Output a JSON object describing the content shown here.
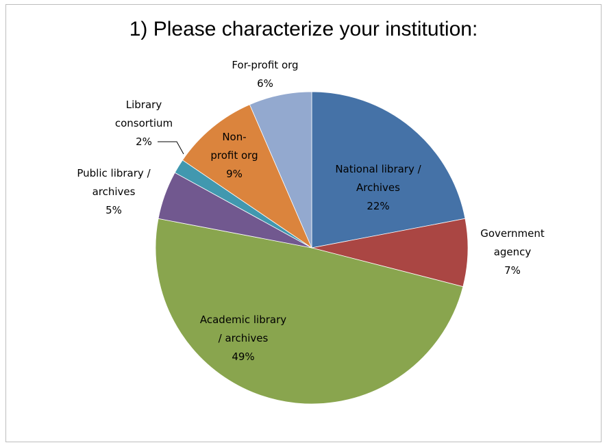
{
  "chart_data": {
    "type": "pie",
    "title": "1) Please characterize your institution:",
    "slices": [
      {
        "label": "National library / Archives",
        "label_lines": [
          "National library /",
          "Archives"
        ],
        "pct_label": "22%",
        "value": 22,
        "color": "#4572A7",
        "label_pos": "inside"
      },
      {
        "label": "Government agency",
        "label_lines": [
          "Government",
          "agency"
        ],
        "pct_label": "7%",
        "value": 7,
        "color": "#AA4643",
        "label_pos": "outside-right"
      },
      {
        "label": "Academic library / archives",
        "label_lines": [
          "Academic library",
          "/ archives"
        ],
        "pct_label": "49%",
        "value": 49,
        "color": "#89A54E",
        "label_pos": "inside"
      },
      {
        "label": "Public library / archives",
        "label_lines": [
          "Public library /",
          "archives"
        ],
        "pct_label": "5%",
        "value": 5,
        "color": "#71588F",
        "label_pos": "outside-left"
      },
      {
        "label": "Library consortium",
        "label_lines": [
          "Library",
          "consortium"
        ],
        "pct_label": "2%",
        "value": 1.5,
        "color": "#4198AF",
        "label_pos": "outside-left-leader"
      },
      {
        "label": "Non-profit org",
        "label_lines": [
          "Non-",
          "profit org"
        ],
        "pct_label": "9%",
        "value": 9,
        "color": "#DB843D",
        "label_pos": "inside"
      },
      {
        "label": "For-profit org",
        "label_lines": [
          "For-profit org"
        ],
        "pct_label": "6%",
        "value": 6.5,
        "color": "#93A9CF",
        "label_pos": "outside-top"
      }
    ],
    "start_angle": "12 o'clock",
    "direction": "clockwise",
    "legend": "none"
  }
}
